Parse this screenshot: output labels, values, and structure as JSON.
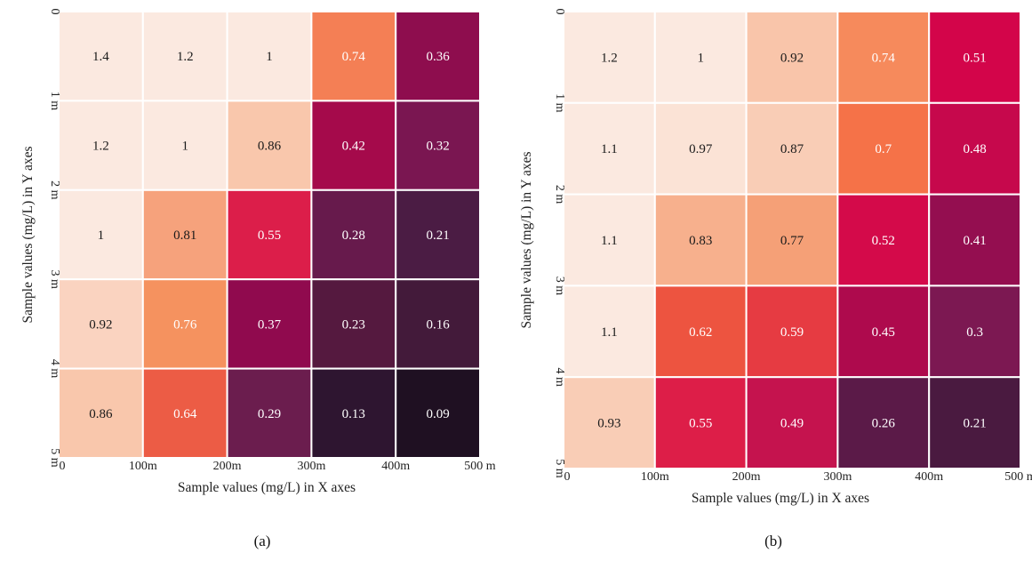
{
  "chart_data": [
    {
      "type": "heatmap",
      "panel_label": "(a)",
      "xlabel": "Sample values (mg/L) in X axes",
      "ylabel": "Sample values (mg/L) in Y axes",
      "x_ticks": [
        "0",
        "100m",
        "200m",
        "300m",
        "400m",
        "500 m"
      ],
      "y_ticks": [
        "0",
        "1 m",
        "2 m",
        "3 m",
        "4 m",
        "5 m"
      ],
      "values": [
        [
          1.4,
          1.2,
          1,
          0.74,
          0.36
        ],
        [
          1.2,
          1,
          0.86,
          0.42,
          0.32
        ],
        [
          1,
          0.81,
          0.55,
          0.28,
          0.21
        ],
        [
          0.92,
          0.76,
          0.37,
          0.23,
          0.16
        ],
        [
          0.86,
          0.64,
          0.29,
          0.13,
          0.09
        ]
      ],
      "labels": [
        [
          "1.4",
          "1.2",
          "1",
          "0.74",
          "0.36"
        ],
        [
          "1.2",
          "1",
          "0.86",
          "0.42",
          "0.32"
        ],
        [
          "1",
          "0.81",
          "0.55",
          "0.28",
          "0.21"
        ],
        [
          "0.92",
          "0.76",
          "0.37",
          "0.23",
          "0.16"
        ],
        [
          "0.86",
          "0.64",
          "0.29",
          "0.13",
          "0.09"
        ]
      ],
      "colors": [
        [
          "#fbe9e0",
          "#fbe9e0",
          "#fbe9e0",
          "#f47f55",
          "#8e0d4e"
        ],
        [
          "#fbe9e0",
          "#fbe9e0",
          "#f9c7ac",
          "#a50a4b",
          "#7a1651"
        ],
        [
          "#fbe9e0",
          "#f6a27c",
          "#dc1e4a",
          "#671a4c",
          "#4b1c44"
        ],
        [
          "#fad3c0",
          "#f5925f",
          "#900a4e",
          "#55193f",
          "#431a3a"
        ],
        [
          "#f9c7ac",
          "#ec5c45",
          "#6b1d4e",
          "#2e1530",
          "#1f1022"
        ]
      ]
    },
    {
      "type": "heatmap",
      "panel_label": "(b)",
      "xlabel": "Sample values (mg/L) in X axes",
      "ylabel": "Sample values (mg/L) in Y axes",
      "x_ticks": [
        "0",
        "100m",
        "200m",
        "300m",
        "400m",
        "500 m"
      ],
      "y_ticks": [
        "0",
        "1 m",
        "2 m",
        "3 m",
        "4 m",
        "5 m"
      ],
      "values": [
        [
          1.2,
          1,
          0.92,
          0.74,
          0.51
        ],
        [
          1.1,
          0.97,
          0.87,
          0.7,
          0.48
        ],
        [
          1.1,
          0.83,
          0.77,
          0.52,
          0.41
        ],
        [
          1.1,
          0.62,
          0.59,
          0.45,
          0.3
        ],
        [
          0.93,
          0.55,
          0.49,
          0.26,
          0.21
        ]
      ],
      "labels": [
        [
          "1.2",
          "1",
          "0.92",
          "0.74",
          "0.51"
        ],
        [
          "1.1",
          "0.97",
          "0.87",
          "0.7",
          "0.48"
        ],
        [
          "1.1",
          "0.83",
          "0.77",
          "0.52",
          "0.41"
        ],
        [
          "1.1",
          "0.62",
          "0.59",
          "0.45",
          "0.3"
        ],
        [
          "0.93",
          "0.55",
          "0.49",
          "0.26",
          "0.21"
        ]
      ],
      "colors": [
        [
          "#fbe9e0",
          "#fbe9e0",
          "#f9c5aa",
          "#f68a5c",
          "#d3054a"
        ],
        [
          "#fbe9e0",
          "#fbe3d6",
          "#f9cdb6",
          "#f57248",
          "#c6084c"
        ],
        [
          "#fbe9e0",
          "#f7b08d",
          "#f5a077",
          "#d40a4a",
          "#940e50"
        ],
        [
          "#fbe9e0",
          "#ed5440",
          "#e63b42",
          "#ae0a4d",
          "#7c1852"
        ],
        [
          "#f9cdb6",
          "#dd1e48",
          "#c5134e",
          "#5b1a48",
          "#4a1a40"
        ]
      ]
    }
  ]
}
